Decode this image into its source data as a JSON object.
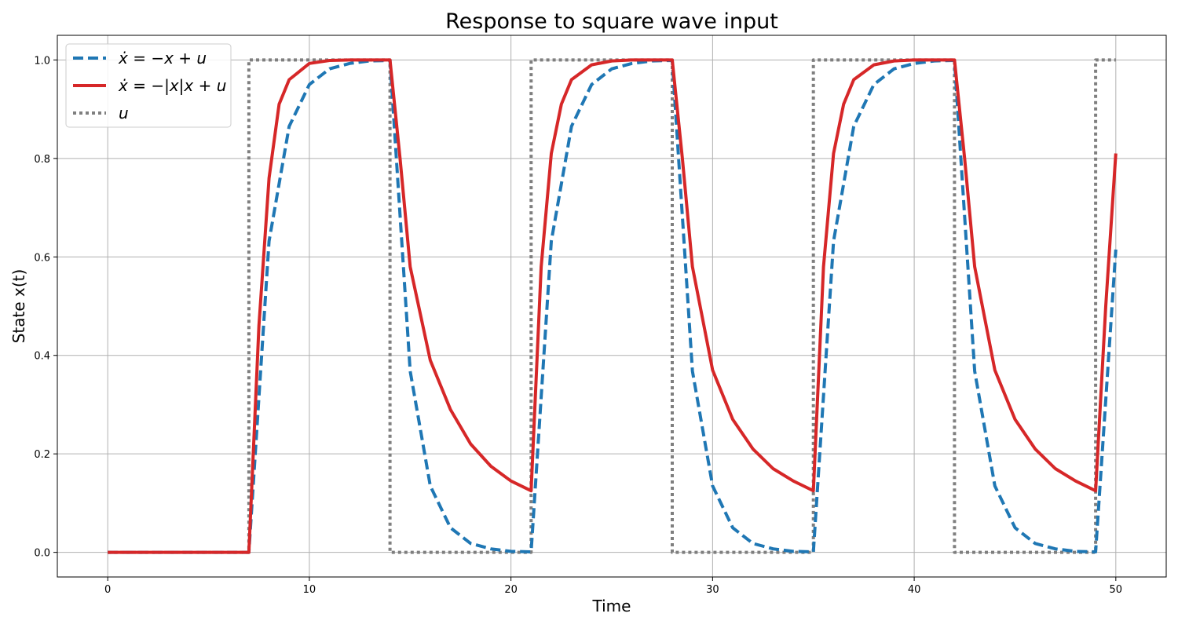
{
  "chart_data": {
    "type": "line",
    "title": "Response to square wave input",
    "xlabel": "Time",
    "ylabel": "State x(t)",
    "xlim": [
      -2.5,
      52.5
    ],
    "ylim": [
      -0.05,
      1.05
    ],
    "xticks": [
      0,
      10,
      20,
      30,
      40,
      50
    ],
    "xtick_labels": [
      "0",
      "10",
      "20",
      "30",
      "40",
      "50"
    ],
    "yticks": [
      0.0,
      0.2,
      0.4,
      0.6,
      0.8,
      1.0
    ],
    "ytick_labels": [
      "0.0",
      "0.2",
      "0.4",
      "0.6",
      "0.8",
      "1.0"
    ],
    "grid": true,
    "legend_position": "upper-left",
    "series": [
      {
        "name": "ẋ = −x + u",
        "name_parts": [
          "ẋ",
          " = −",
          "x",
          " + ",
          "u"
        ],
        "color": "#1f77b4",
        "style": "dashed",
        "x": [
          0,
          7,
          8,
          9,
          10,
          11,
          12,
          13,
          14,
          15,
          16,
          17,
          18,
          19,
          20,
          21,
          22,
          23,
          24,
          25,
          26,
          27,
          28,
          29,
          30,
          31,
          32,
          33,
          34,
          35,
          36,
          37,
          38,
          39,
          40,
          41,
          42,
          43,
          44,
          45,
          46,
          47,
          48,
          49,
          50
        ],
        "y": [
          0.0,
          0.0,
          0.632,
          0.865,
          0.95,
          0.982,
          0.993,
          0.998,
          0.999,
          0.368,
          0.135,
          0.05,
          0.018,
          0.007,
          0.002,
          0.001,
          0.632,
          0.865,
          0.95,
          0.982,
          0.993,
          0.998,
          0.999,
          0.368,
          0.135,
          0.05,
          0.018,
          0.007,
          0.002,
          0.001,
          0.632,
          0.865,
          0.95,
          0.982,
          0.993,
          0.998,
          0.999,
          0.368,
          0.135,
          0.05,
          0.018,
          0.007,
          0.002,
          0.001,
          0.615
        ]
      },
      {
        "name": "ẋ = −|x|x + u",
        "name_parts": [
          "ẋ",
          " = −|",
          "x",
          "|",
          "x",
          " + ",
          "u"
        ],
        "color": "#d62728",
        "style": "solid",
        "x": [
          0,
          7,
          7.5,
          8,
          8.5,
          9,
          10,
          11,
          12,
          13,
          14,
          14.5,
          15,
          16,
          17,
          18,
          19,
          20,
          21,
          21.5,
          22,
          22.5,
          23,
          24,
          25,
          26,
          27,
          28,
          28.5,
          29,
          30,
          31,
          32,
          33,
          34,
          35,
          35.5,
          36,
          36.5,
          37,
          38,
          39,
          40,
          41,
          42,
          42.5,
          43,
          44,
          45,
          46,
          47,
          48,
          49,
          49.5,
          50
        ],
        "y": [
          0.0,
          0.0,
          0.46,
          0.76,
          0.91,
          0.96,
          0.993,
          0.999,
          1.0,
          1.0,
          1.0,
          0.8,
          0.58,
          0.39,
          0.29,
          0.22,
          0.175,
          0.145,
          0.125,
          0.58,
          0.81,
          0.91,
          0.96,
          0.99,
          0.998,
          1.0,
          1.0,
          1.0,
          0.8,
          0.58,
          0.37,
          0.27,
          0.21,
          0.17,
          0.145,
          0.125,
          0.58,
          0.81,
          0.91,
          0.96,
          0.99,
          0.998,
          1.0,
          1.0,
          1.0,
          0.8,
          0.58,
          0.37,
          0.27,
          0.21,
          0.17,
          0.145,
          0.125,
          0.5,
          0.81
        ]
      },
      {
        "name": "u",
        "name_parts": [
          "u"
        ],
        "color": "#7f7f7f",
        "style": "dotted",
        "x": [
          0,
          7,
          7,
          14,
          14,
          21,
          21,
          28,
          28,
          35,
          35,
          42,
          42,
          49,
          49,
          50
        ],
        "y": [
          0,
          0,
          1,
          1,
          0,
          0,
          1,
          1,
          0,
          0,
          1,
          1,
          0,
          0,
          1,
          1
        ]
      }
    ]
  }
}
